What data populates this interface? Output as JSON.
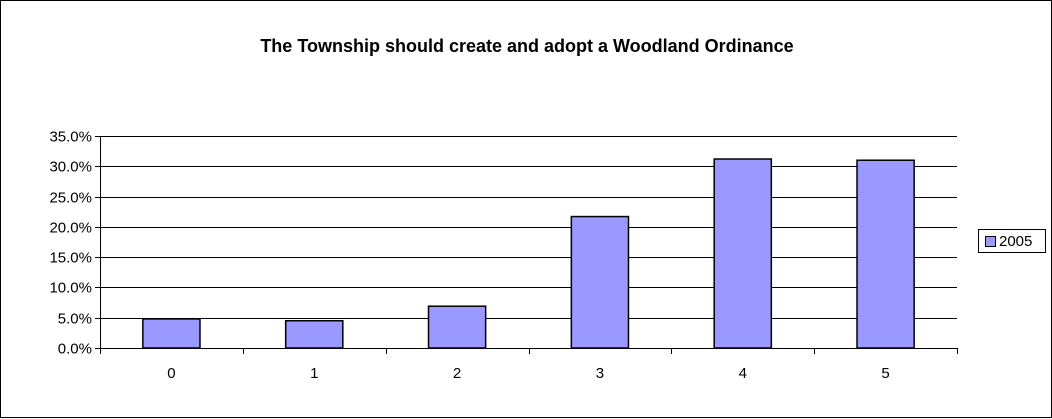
{
  "chart_data": {
    "type": "bar",
    "title": "The Township should create and adopt a Woodland Ordinance",
    "categories": [
      "0",
      "1",
      "2",
      "3",
      "4",
      "5"
    ],
    "series": [
      {
        "name": "2005",
        "values": [
          4.8,
          4.5,
          6.9,
          21.7,
          31.2,
          31.0
        ]
      }
    ],
    "ylim": [
      0,
      35
    ],
    "yticks": [
      "0.0%",
      "5.0%",
      "10.0%",
      "15.0%",
      "20.0%",
      "25.0%",
      "30.0%",
      "35.0%"
    ],
    "ytick_values": [
      0,
      5,
      10,
      15,
      20,
      25,
      30,
      35
    ],
    "grid": true,
    "legend": "right",
    "colors": {
      "bar": "#9999ff",
      "bar_border": "#000000",
      "grid": "#000000"
    }
  }
}
